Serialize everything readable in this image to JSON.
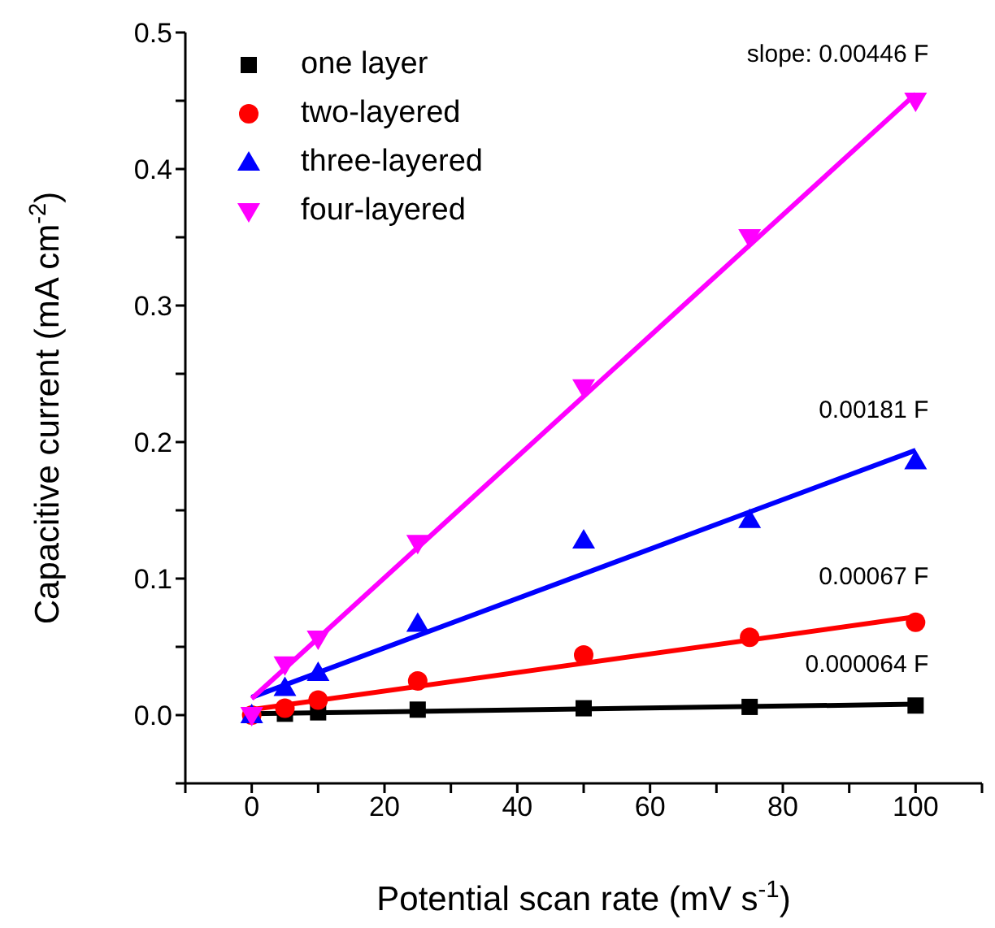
{
  "chart_data": {
    "type": "scatter",
    "xlabel": "Potential scan rate (mV s$^{-1}$)",
    "ylabel": "Capacitive current (mA cm$^{-2}$)",
    "x": [
      0,
      5,
      10,
      25,
      50,
      75,
      100
    ],
    "series": [
      {
        "name": "one layer",
        "color": "#000000",
        "marker": "square",
        "values": [
          null,
          0.001,
          0.002,
          0.004,
          0.005,
          0.006,
          0.007
        ]
      },
      {
        "name": "two-layered",
        "color": "#ff0000",
        "marker": "circle",
        "values": [
          0,
          0.005,
          0.011,
          0.025,
          0.044,
          0.057,
          0.068
        ]
      },
      {
        "name": "three-layered",
        "color": "#0000ff",
        "marker": "triangle",
        "values": [
          0,
          0.02,
          0.031,
          0.067,
          0.128,
          0.143,
          0.186
        ]
      },
      {
        "name": "four-layered",
        "color": "#ff00ff",
        "marker": "triangle-down",
        "values": [
          0,
          0.037,
          0.056,
          0.126,
          0.24,
          0.35,
          0.45
        ]
      },
      {
        "type": "line",
        "color": "#000000",
        "values": [
          0.001,
          null,
          null,
          null,
          null,
          null,
          0.008
        ]
      },
      {
        "type": "line",
        "color": "#ff0000",
        "values": [
          0.004,
          null,
          null,
          null,
          null,
          null,
          0.072
        ]
      },
      {
        "type": "line",
        "color": "#0000ff",
        "values": [
          0.013,
          null,
          null,
          null,
          null,
          null,
          0.194
        ]
      },
      {
        "type": "line",
        "color": "#ff00ff",
        "values": [
          0.012,
          null,
          null,
          null,
          null,
          null,
          0.455
        ]
      }
    ],
    "annotations": [
      "0.000064 F",
      "0.00067 F",
      "0.00181 F",
      "slope: 0.00446 F"
    ],
    "xlim": [
      -10,
      110
    ],
    "xticks": [
      {
        "value": -10,
        "label": null
      },
      0,
      {
        "value": 10,
        "label": null
      },
      20,
      {
        "value": 30,
        "label": null
      },
      40,
      {
        "value": 50,
        "label": null
      },
      60,
      {
        "value": 70,
        "label": null
      },
      80,
      {
        "value": 90,
        "label": null
      },
      100,
      {
        "value": 110,
        "label": null
      }
    ],
    "ylim": [
      -0.05,
      0.5
    ],
    "yticks": [
      {
        "value": -0.05,
        "label": null
      },
      {
        "value": 0,
        "label": "0.0"
      },
      {
        "value": 0.05,
        "label": null
      },
      0.1,
      {
        "value": 0.15,
        "label": null
      },
      0.2,
      {
        "value": 0.25,
        "label": null
      },
      0.3,
      {
        "value": 0.35,
        "label": null
      },
      0.4,
      {
        "value": 0.45,
        "label": null
      },
      0.5
    ],
    "grid": false,
    "legend": "top left"
  }
}
